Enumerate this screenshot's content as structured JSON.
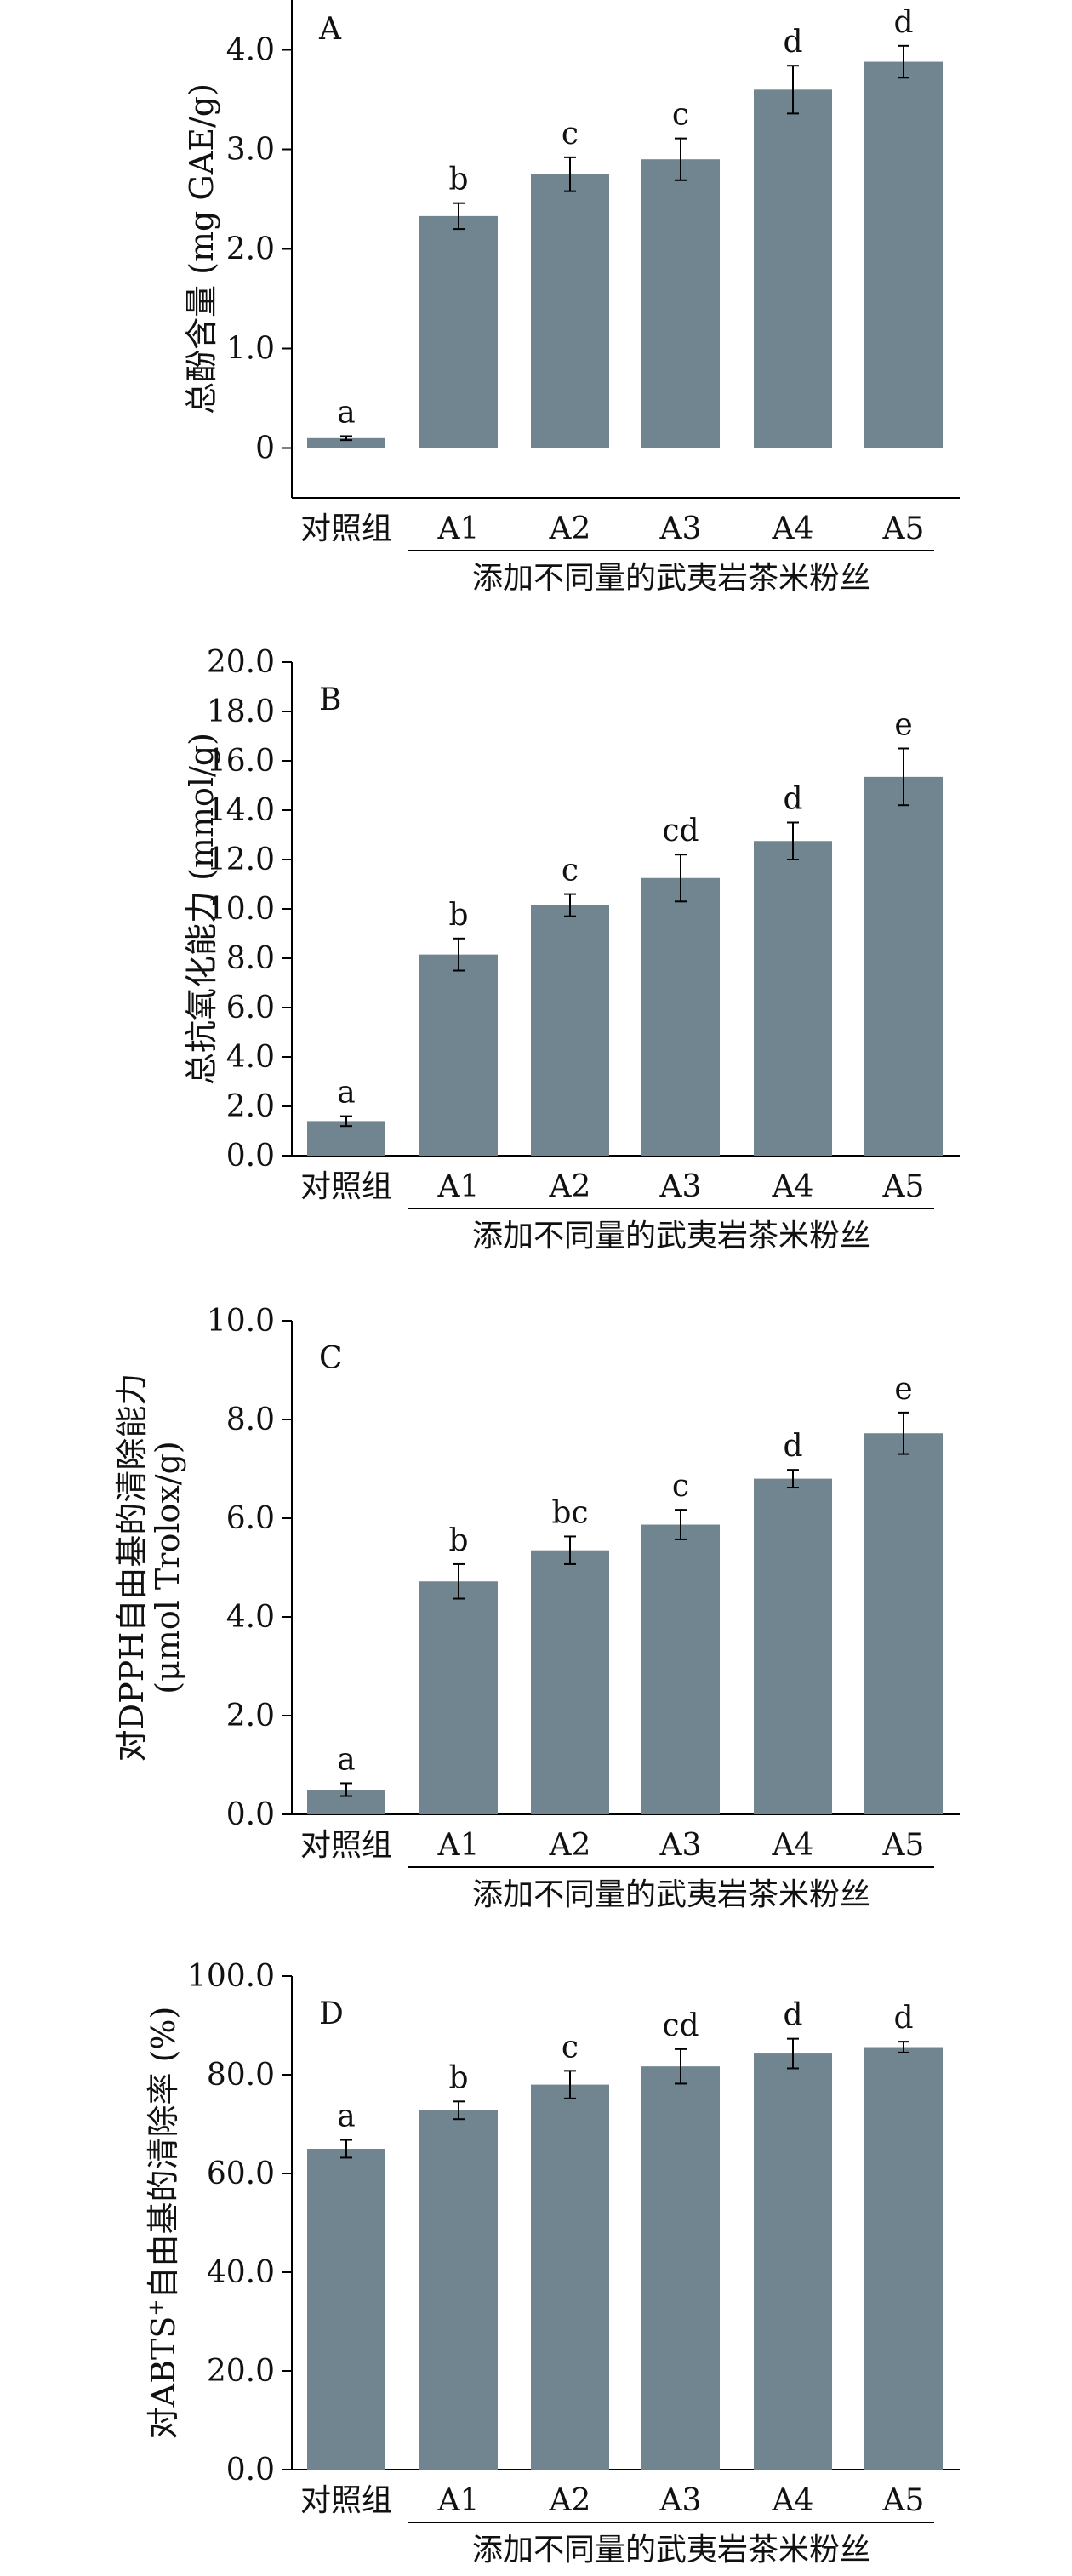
{
  "chart_data": [
    {
      "type": "bar",
      "panel_label": "A",
      "categories": [
        "对照组",
        "A1",
        "A2",
        "A3",
        "A4",
        "A5"
      ],
      "values": [
        0.1,
        2.33,
        2.75,
        2.9,
        3.6,
        3.88
      ],
      "errors": [
        0.02,
        0.13,
        0.17,
        0.21,
        0.24,
        0.16
      ],
      "letters": [
        "a",
        "b",
        "c",
        "c",
        "d",
        "d"
      ],
      "ylabel": "总酚含量 (mg GAE/g)",
      "group_label": "添加不同量的武夷岩茶米粉丝",
      "ylim": [
        -0.5,
        4.5
      ],
      "yticks": [
        0,
        1.0,
        2.0,
        3.0,
        4.0
      ],
      "ytick_labels": [
        "0",
        "1.0",
        "2.0",
        "3.0",
        "4.0"
      ],
      "bar_color": "#708590"
    },
    {
      "type": "bar",
      "panel_label": "B",
      "categories": [
        "对照组",
        "A1",
        "A2",
        "A3",
        "A4",
        "A5"
      ],
      "values": [
        1.4,
        8.15,
        10.15,
        11.25,
        12.75,
        15.35
      ],
      "errors": [
        0.2,
        0.65,
        0.45,
        0.95,
        0.75,
        1.15
      ],
      "letters": [
        "a",
        "b",
        "c",
        "cd",
        "d",
        "e"
      ],
      "ylabel": "总抗氧化能力 (mmol/g)",
      "group_label": "添加不同量的武夷岩茶米粉丝",
      "ylim": [
        0,
        20
      ],
      "yticks": [
        0,
        2,
        4,
        6,
        8,
        10,
        12,
        14,
        16,
        18,
        20
      ],
      "ytick_labels": [
        "0.0",
        "2.0",
        "4.0",
        "6.0",
        "8.0",
        "10.0",
        "12.0",
        "14.0",
        "16.0",
        "18.0",
        "20.0"
      ],
      "bar_color": "#708590"
    },
    {
      "type": "bar",
      "panel_label": "C",
      "categories": [
        "对照组",
        "A1",
        "A2",
        "A3",
        "A4",
        "A5"
      ],
      "values": [
        0.5,
        4.72,
        5.35,
        5.87,
        6.8,
        7.72
      ],
      "errors": [
        0.13,
        0.35,
        0.28,
        0.3,
        0.18,
        0.42
      ],
      "letters": [
        "a",
        "b",
        "bc",
        "c",
        "d",
        "e"
      ],
      "ylabel_lines": [
        "对DPPH自由基的清除能力",
        "(μmol Trolox/g)"
      ],
      "group_label": "添加不同量的武夷岩茶米粉丝",
      "ylim": [
        0,
        10
      ],
      "yticks": [
        0,
        2,
        4,
        6,
        8,
        10
      ],
      "ytick_labels": [
        "0.0",
        "2.0",
        "4.0",
        "6.0",
        "8.0",
        "10.0"
      ],
      "bar_color": "#708590"
    },
    {
      "type": "bar",
      "panel_label": "D",
      "categories": [
        "对照组",
        "A1",
        "A2",
        "A3",
        "A4",
        "A5"
      ],
      "values": [
        65.0,
        72.8,
        78.0,
        81.7,
        84.3,
        85.6
      ],
      "errors": [
        1.8,
        1.8,
        2.8,
        3.5,
        3.0,
        1.1
      ],
      "letters": [
        "a",
        "b",
        "c",
        "cd",
        "d",
        "d"
      ],
      "ylabel_prefix": "对ABTS",
      "ylabel_sup": "+",
      "ylabel_suffix": "自由基的清除率 (%)",
      "group_label": "添加不同量的武夷岩茶米粉丝",
      "ylim": [
        0,
        100
      ],
      "yticks": [
        0,
        20,
        40,
        60,
        80,
        100
      ],
      "ytick_labels": [
        "0.0",
        "20.0",
        "40.0",
        "60.0",
        "80.0",
        "100.0"
      ],
      "bar_color": "#708590"
    }
  ]
}
